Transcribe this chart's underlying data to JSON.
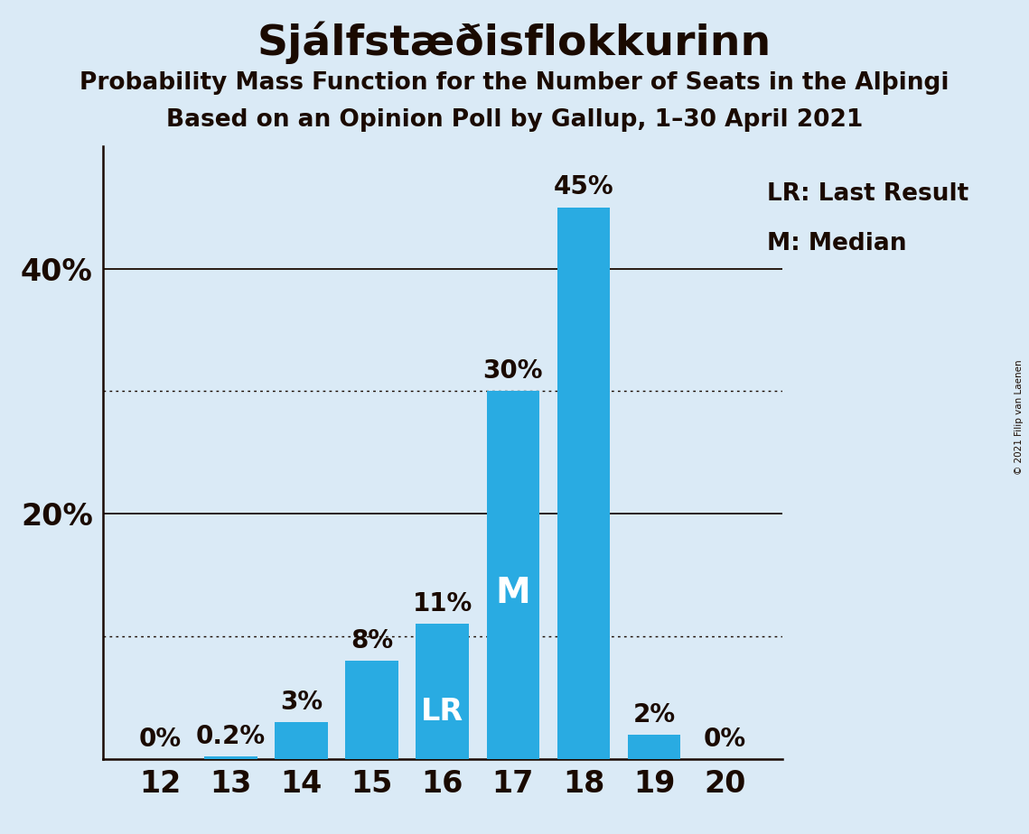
{
  "title": "Sjálfstæðisflokkurinn",
  "subtitle1": "Probability Mass Function for the Number of Seats in the Alþинги",
  "subtitle2": "Based on an Opinion Poll by Gallup, 1–30 April 2021",
  "subtitle1_clean": "Probability Mass Function for the Number of Seats in the Alþingi",
  "copyright": "© 2021 Filip van Laenen",
  "categories": [
    12,
    13,
    14,
    15,
    16,
    17,
    18,
    19,
    20
  ],
  "values": [
    0.0,
    0.2,
    3.0,
    8.0,
    11.0,
    30.0,
    45.0,
    2.0,
    0.0
  ],
  "bar_color": "#29abe2",
  "background_color": "#daeaf6",
  "title_color": "#1a0a00",
  "bar_label_color_outside": "#1a0a00",
  "bar_label_color_inside": "#ffffff",
  "lr_bar": 16,
  "median_bar": 17,
  "dotted_lines": [
    10,
    30
  ],
  "solid_lines": [
    20,
    40
  ],
  "ylim": [
    0,
    50
  ],
  "legend_lr": "LR: Last Result",
  "legend_m": "M: Median",
  "title_fontsize": 34,
  "subtitle_fontsize": 19,
  "bar_label_fontsize": 20,
  "inside_label_fontsize": 24,
  "ytick_fontsize": 24,
  "xtick_fontsize": 24,
  "legend_fontsize": 19
}
